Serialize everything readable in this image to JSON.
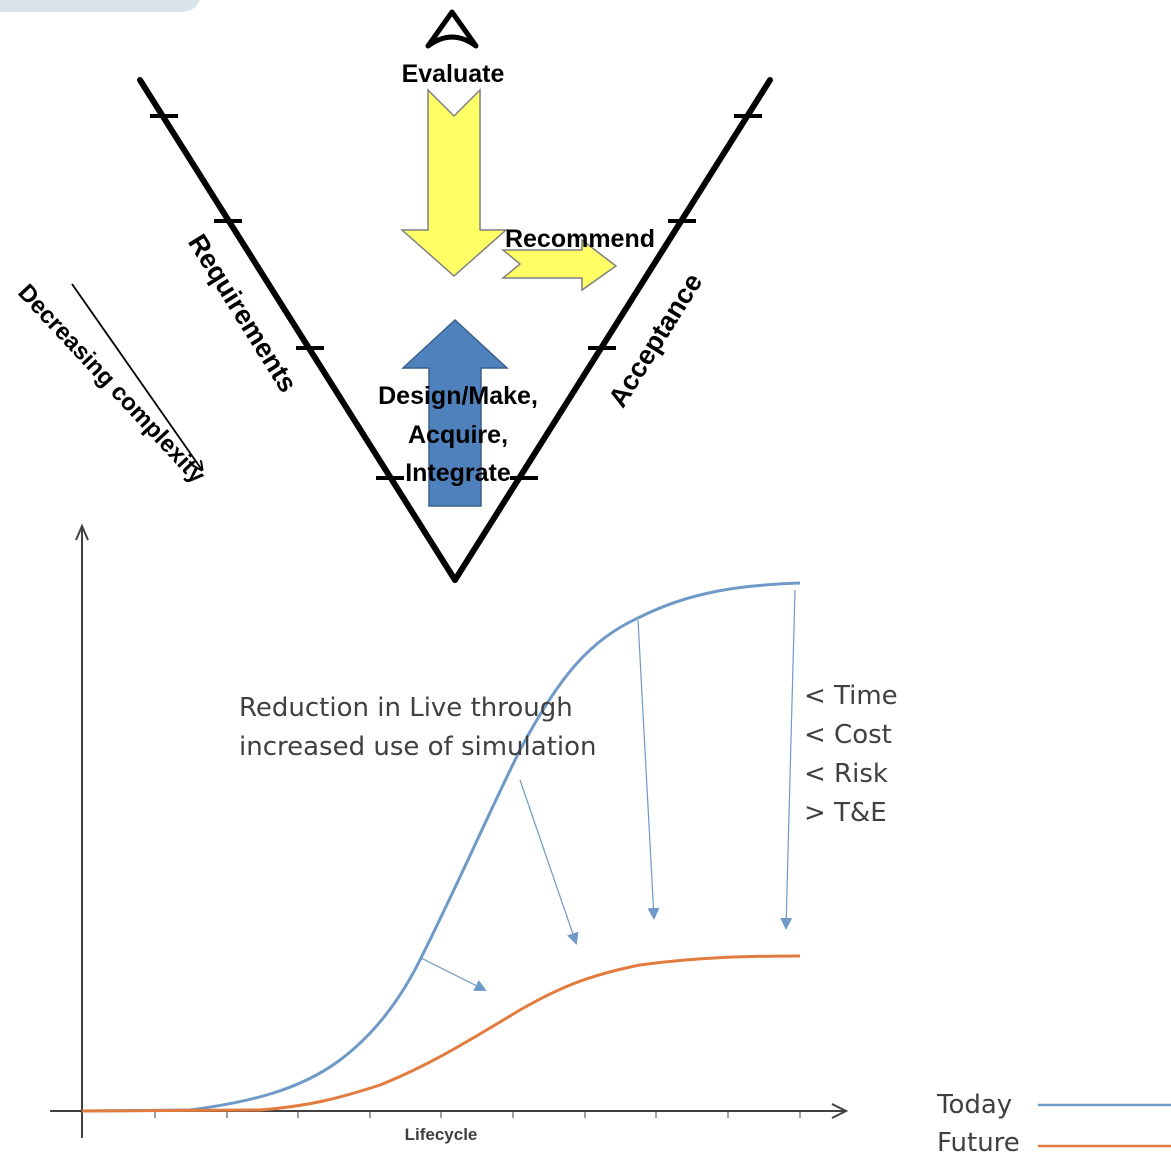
{
  "v_diagram": {
    "labels": {
      "evaluate": "Evaluate",
      "recommend": "Recommend",
      "requirements": "Requirements",
      "acceptance": "Acceptance",
      "design_line1": "Design/Make,",
      "design_line2": "Acquire,",
      "design_line3": "Integrate",
      "decreasing_complexity": "Decreasing complexity"
    },
    "icons": [
      "eye-icon"
    ],
    "colors": {
      "yellow_arrow": "#ffff66",
      "blue_arrow": "#4f81bd",
      "lines": "#000000"
    }
  },
  "curve_chart": {
    "xlabel": "Lifecycle",
    "annotation_line1": "Reduction in Live through",
    "annotation_line2": "increased use of simulation",
    "benefits": [
      "< Time",
      "< Cost",
      "< Risk",
      "> T&E"
    ],
    "legend": [
      {
        "name": "Today",
        "color": "#6f99c6"
      },
      {
        "name": "Future",
        "color": "#e27b3e"
      }
    ]
  }
}
